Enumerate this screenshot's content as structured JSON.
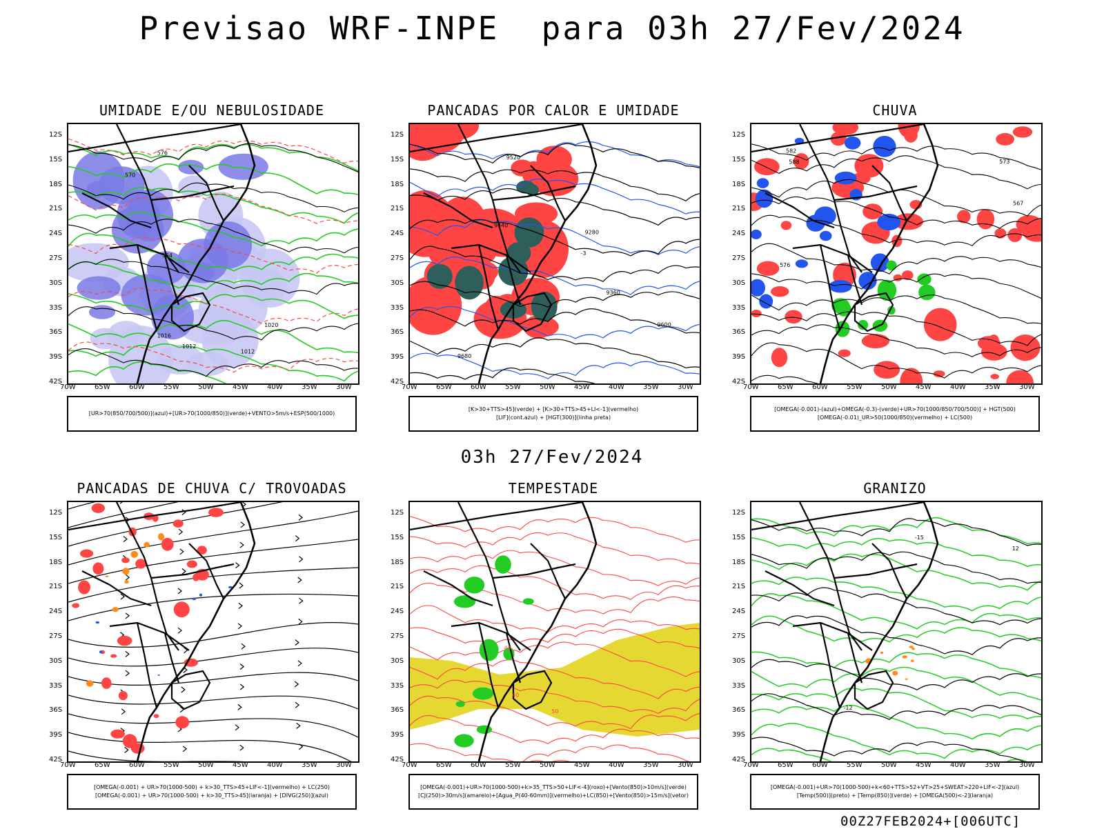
{
  "header": {
    "title": "Previsao WRF-INPE  para 03h 27/Fev/2024",
    "mid_time": "03h 27/Fev/2024",
    "footer": "00Z27FEB2024+[006UTC]"
  },
  "axes": {
    "lat_labels": [
      "12S",
      "15S",
      "18S",
      "21S",
      "24S",
      "27S",
      "30S",
      "33S",
      "36S",
      "39S",
      "42S"
    ],
    "lon_labels": [
      "70W",
      "65W",
      "60W",
      "55W",
      "50W",
      "45W",
      "40W",
      "35W",
      "30W"
    ]
  },
  "colors": {
    "humidity_blue": "#7a7ae6",
    "humidity_light": "#c8c8f5",
    "green": "#22cc22",
    "red": "#ff4444",
    "dark_green": "#2f5f5a",
    "blue": "#2255ee",
    "yellow": "#e6d832",
    "orange": "#ff8c1a",
    "black": "#000000"
  },
  "panels": [
    {
      "id": "umidade",
      "title": "UMIDADE E/OU NEBULOSIDADE",
      "legend": [
        "[UR>70(850/700/500)](azul)+[UR>70(1000/850)](verde)+VENTO>5m/s+ESP(500/1000)"
      ],
      "contour_labels": [
        "1012",
        "1012",
        "1016",
        "1020",
        "576",
        "570",
        "564"
      ]
    },
    {
      "id": "pancadas-calor",
      "title": "PANCADAS POR CALOR E UMIDADE",
      "legend": [
        "[K>30+TTS>45](verde) + [K>30+TTS>45+LI<-1](vermelho)",
        "[LIF](cont.azul) + [HGT(300)](linha preta)"
      ],
      "contour_labels": [
        "9680",
        "9600",
        "9520",
        "9440",
        "9360",
        "9280",
        "-3"
      ]
    },
    {
      "id": "chuva",
      "title": "CHUVA",
      "legend": [
        "[OMEGA(-0.001)-(azul)+OMEGA(-0.3)-(verde)+UR>70(1000/850/700/500)] + HGT(500)",
        "[OMEGA(-0.01)_UR>50(1000/850)(vermelho) + LC(500)"
      ],
      "contour_labels": [
        "588",
        "582",
        "576",
        "573",
        "567"
      ]
    },
    {
      "id": "pancadas-trovoadas",
      "title": "PANCADAS DE CHUVA C/ TROVOADAS",
      "legend": [
        "[OMEGA(-0.001) + UR>70(1000-500) + k>30_TTS>45+LIF<-1](vermelho) + LC(250)",
        "[OMEGA(-0.001) + UR>70(1000-500) + k>30_TTS>45](laranja) + [DIVG(250)](azul)"
      ],
      "contour_labels": []
    },
    {
      "id": "tempestade",
      "title": "TEMPESTADE",
      "legend": [
        "[OMEGA(-0.001)+UR>70(1000-500)+k>35_TTS>50+LIF<-4](roxo)+[Vento(850)>10m/s](verde)",
        "[CJ(250)>30m/s](amarelo)+[Agua_P(40-60mm)](vermelho)+LC(850)+[Vento(850)>15m/s](vetor)"
      ],
      "contour_labels": [
        "40",
        "50",
        "40"
      ]
    },
    {
      "id": "granizo",
      "title": "GRANIZO",
      "legend": [
        "[OMEGA(-0.001)+UR>70(1000-500)+k<60+TTS>52+VT>25+SWEAT>220+LIF<-2](azul)",
        "[Temp(500)](preto) + [Temp(850)](verde) + [OMEGA(500)<-2](laranja)"
      ],
      "contour_labels": [
        "-12",
        "-15",
        "12"
      ]
    }
  ]
}
